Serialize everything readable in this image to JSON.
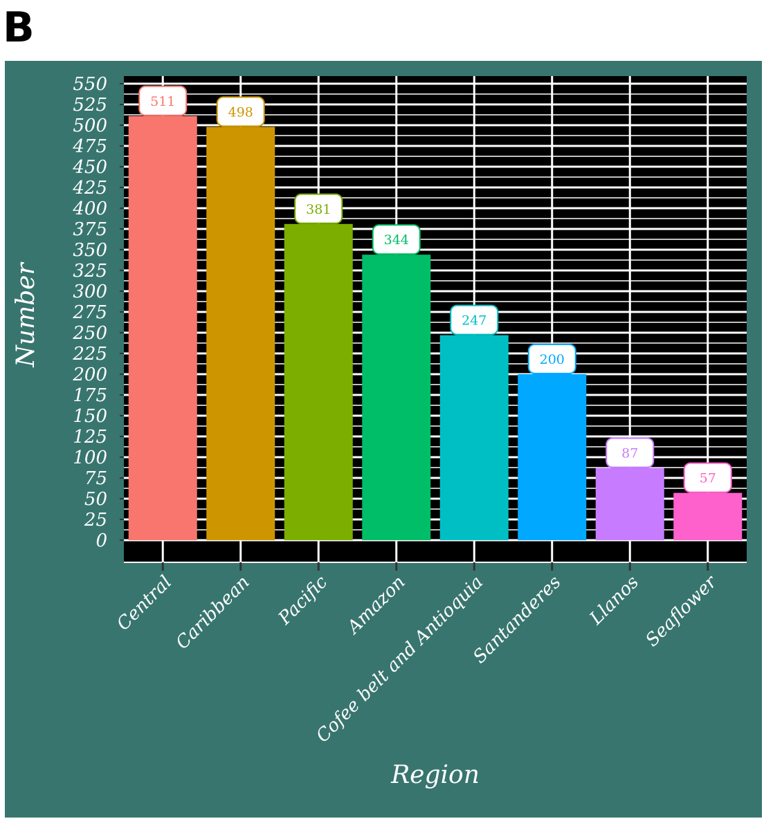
{
  "panel_label": "B",
  "chart_data": {
    "type": "bar",
    "title": "",
    "xlabel": "Region",
    "ylabel": "Number",
    "categories": [
      "Central",
      "Caribbean",
      "Pacific",
      "Amazon",
      "Cofee belt and Antioquia",
      "Santanderes",
      "Llanos",
      "Seaflower"
    ],
    "values": [
      511,
      498,
      381,
      344,
      247,
      200,
      87,
      57
    ],
    "colors": [
      "#f8766d",
      "#cd9600",
      "#7cae00",
      "#00be67",
      "#00bfc4",
      "#00a9ff",
      "#c77cff",
      "#ff61cc"
    ],
    "ylim": [
      0,
      550
    ],
    "y_ticks": [
      0,
      25,
      50,
      75,
      100,
      125,
      150,
      175,
      200,
      225,
      250,
      275,
      300,
      325,
      350,
      375,
      400,
      425,
      450,
      475,
      500,
      525,
      550
    ],
    "grid": true,
    "legend": "none",
    "background_color": "#38756f",
    "plot_background_color": "#000000",
    "grid_color": "#ffffff"
  }
}
